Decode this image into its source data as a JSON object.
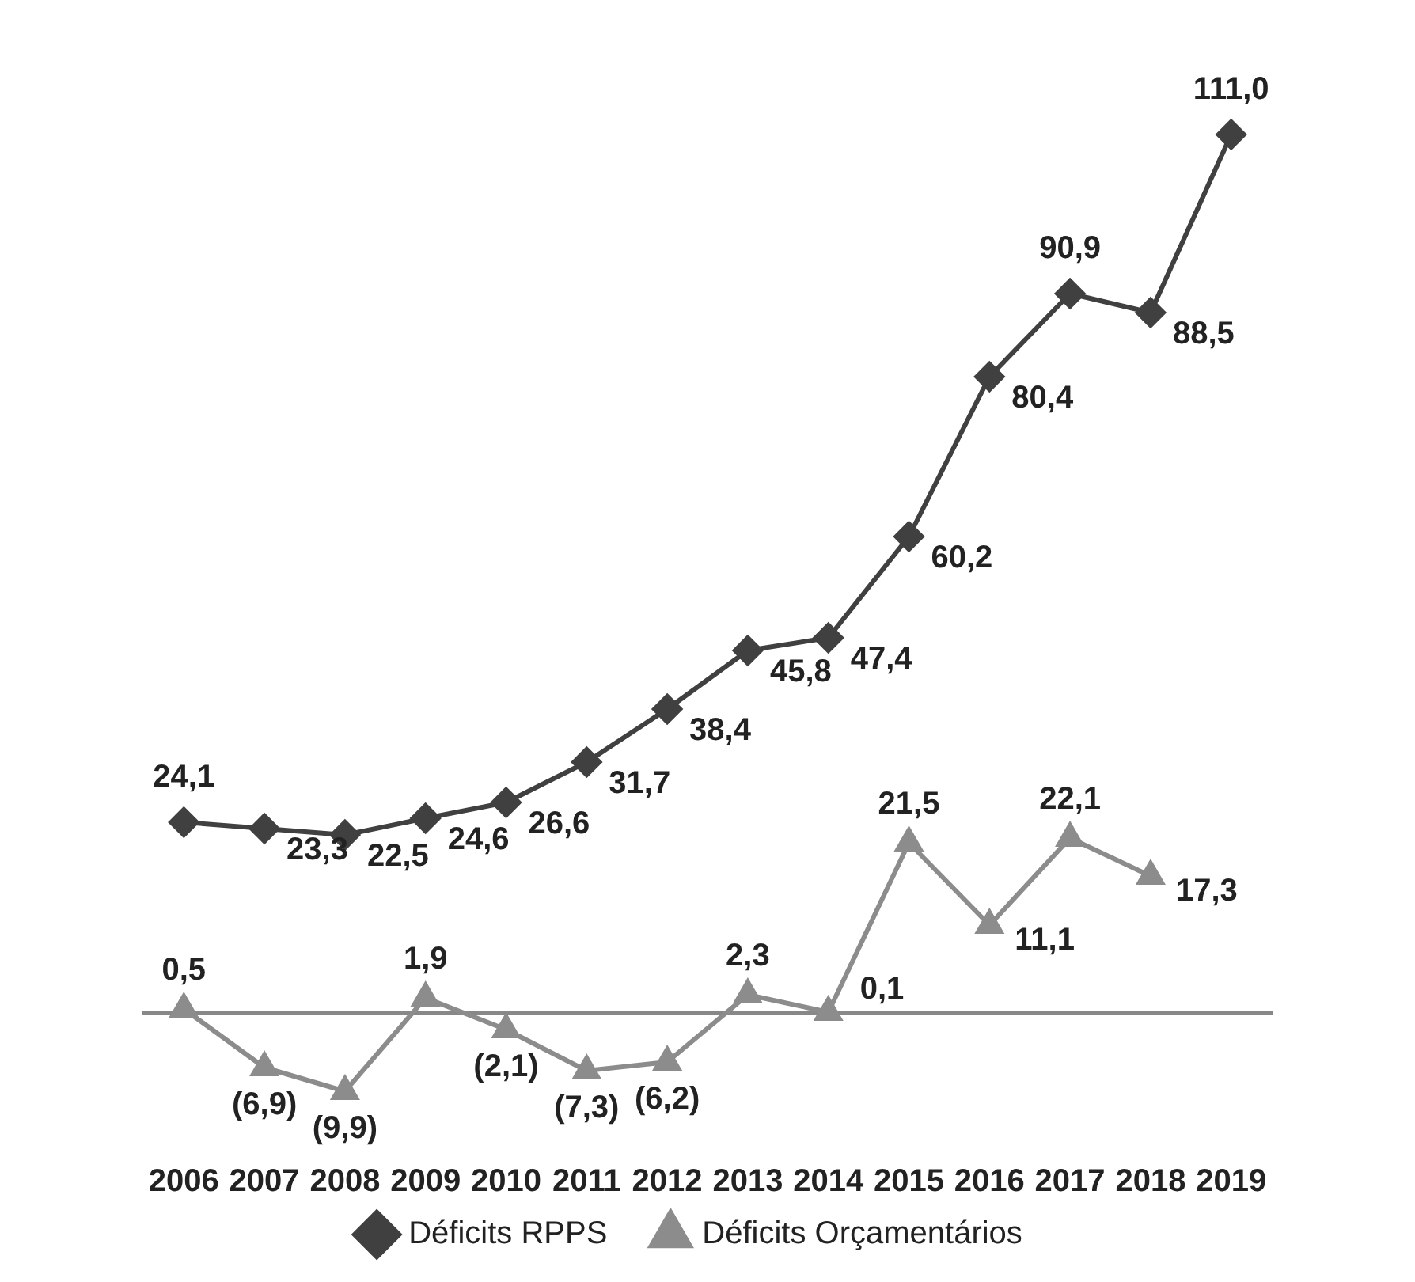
{
  "chart_data": {
    "type": "line",
    "categories": [
      "2006",
      "2007",
      "2008",
      "2009",
      "2010",
      "2011",
      "2012",
      "2013",
      "2014",
      "2015",
      "2016",
      "2017",
      "2018",
      "2019"
    ],
    "series": [
      {
        "name": "Déficits RPPS",
        "color": "#404040",
        "marker": "diamond",
        "values": [
          24.1,
          23.3,
          22.5,
          24.6,
          26.6,
          31.7,
          38.4,
          45.8,
          47.4,
          60.2,
          80.4,
          90.9,
          88.5,
          111.0
        ],
        "value_labels": [
          "24,1",
          "23,3",
          "22,5",
          "24,6",
          "26,6",
          "31,7",
          "38,4",
          "45,8",
          "47,4",
          "60,2",
          "80,4",
          "90,9",
          "88,5",
          "111,0"
        ]
      },
      {
        "name": "Déficits Orçamentários",
        "color": "#8c8c8c",
        "marker": "triangle",
        "values": [
          0.5,
          -6.9,
          -9.9,
          1.9,
          -2.1,
          -7.3,
          -6.2,
          2.3,
          0.1,
          21.5,
          11.1,
          22.1,
          17.3,
          null
        ],
        "value_labels": [
          "0,5",
          "(6,9)",
          "(9,9)",
          "1,9",
          "(2,1)",
          "(7,3)",
          "(6,2)",
          "2,3",
          "0,1",
          "21,5",
          "11,1",
          "22,1",
          "17,3",
          null
        ]
      }
    ],
    "data_labels": true,
    "legend": "bottom",
    "grid": false,
    "tick_labels": "x"
  }
}
